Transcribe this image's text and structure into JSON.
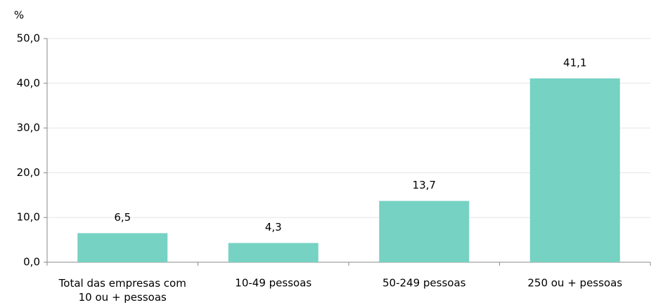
{
  "chart_data": {
    "type": "bar",
    "y_axis_label": "%",
    "categories": [
      "Total das empresas com 10 ou + pessoas",
      "10-49 pessoas",
      "50-249 pessoas",
      "250 ou + pessoas"
    ],
    "values": [
      6.5,
      4.3,
      13.7,
      41.1
    ],
    "value_labels": [
      "6,5",
      "4,3",
      "13,7",
      "41,1"
    ],
    "color": "#76d2c3",
    "ylim": [
      0,
      50
    ],
    "yticks": [
      {
        "value": 0,
        "label": "0,0"
      },
      {
        "value": 10,
        "label": "10,0"
      },
      {
        "value": 20,
        "label": "20,0"
      },
      {
        "value": 30,
        "label": "30,0"
      },
      {
        "value": 40,
        "label": "40,0"
      },
      {
        "value": 50,
        "label": "50,0"
      }
    ],
    "grid": true
  }
}
